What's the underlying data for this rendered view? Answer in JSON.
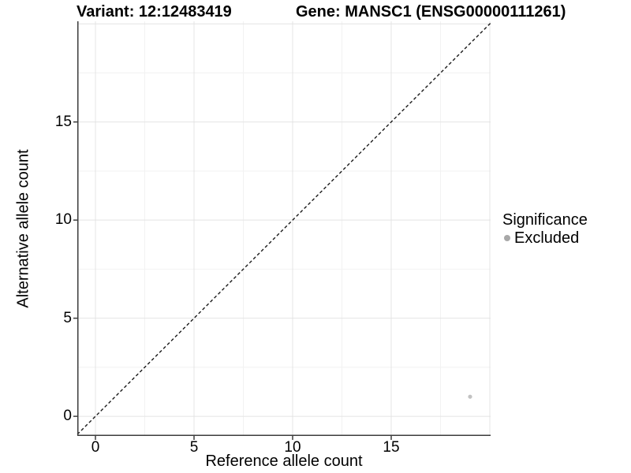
{
  "chart_data": {
    "type": "scatter",
    "title_left": "Variant: 12:12483419",
    "title_right": "Gene: MANSC1 (ENSG00000111261)",
    "xlabel": "Reference allele count",
    "ylabel": "Alternative allele count",
    "x_domain": [
      -0.92,
      20.04
    ],
    "y_domain": [
      -1.0,
      20.13
    ],
    "x_ticks": [
      0,
      5,
      10,
      15
    ],
    "y_ticks": [
      0,
      5,
      10,
      15
    ],
    "x_gridlines_major": [
      0,
      5,
      10,
      15,
      20
    ],
    "x_gridlines_minor": [
      2.5,
      7.5,
      12.5,
      17.5
    ],
    "y_gridlines_major": [
      0,
      5,
      10,
      15,
      20
    ],
    "y_gridlines_minor": [
      2.5,
      7.5,
      12.5,
      17.5
    ],
    "abline": {
      "slope": 1,
      "intercept": 0,
      "style": "dashed",
      "color": "#1a1a1a"
    },
    "points": [
      {
        "x": 19,
        "y": 1,
        "significance": "Excluded"
      }
    ],
    "legend": {
      "title": "Significance",
      "items": [
        {
          "label": "Excluded",
          "color": "#a8a8a8"
        }
      ],
      "position": "right"
    },
    "colors": {
      "background": "#ffffff",
      "grid_major": "#e4e4e4",
      "grid_minor": "#f2f2f2",
      "axis_line": "#3c3c3c",
      "point": "#c2c2c2"
    },
    "grid": "on"
  }
}
